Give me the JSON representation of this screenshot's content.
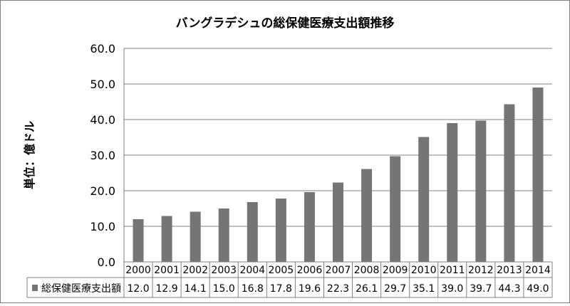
{
  "chart_data": {
    "type": "bar",
    "title": "バングラデシュの総保健医療支出額推移",
    "ylabel": "単位：億ドル",
    "xlabel": "",
    "ylim": [
      0,
      60
    ],
    "yticks": [
      "0.0",
      "10.0",
      "20.0",
      "30.0",
      "40.0",
      "50.0",
      "60.0"
    ],
    "grid": true,
    "legend_position": "data-table",
    "categories": [
      "2000",
      "2001",
      "2002",
      "2003",
      "2004",
      "2005",
      "2006",
      "2007",
      "2008",
      "2009",
      "2010",
      "2011",
      "2012",
      "2013",
      "2014"
    ],
    "series": [
      {
        "name": "総保健医療支出額",
        "color": "#757575",
        "values": [
          12.0,
          12.9,
          14.1,
          15.0,
          16.8,
          17.8,
          19.6,
          22.3,
          26.1,
          29.7,
          35.1,
          39.0,
          39.7,
          44.3,
          49.0
        ],
        "labels": [
          "12.0",
          "12.9",
          "14.1",
          "15.0",
          "16.8",
          "17.8",
          "19.6",
          "22.3",
          "26.1",
          "29.7",
          "35.1",
          "39.0",
          "39.7",
          "44.3",
          "49.0"
        ]
      }
    ]
  }
}
